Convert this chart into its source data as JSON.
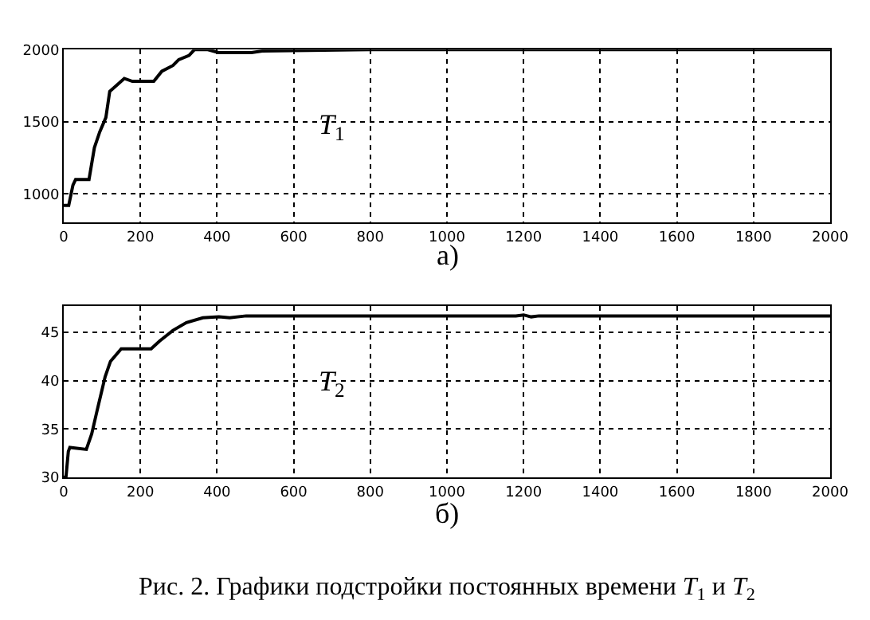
{
  "chart_data": [
    {
      "type": "line",
      "xlabel": "а)",
      "xlim": [
        0,
        2000
      ],
      "xticks": [
        0,
        200,
        400,
        600,
        800,
        1000,
        1200,
        1400,
        1600,
        1800,
        2000
      ],
      "ylim": [
        800,
        2000
      ],
      "yticks": [
        1000,
        1500,
        2000
      ],
      "grid": true,
      "legend": false,
      "marker": "none",
      "line_style": "solid",
      "series": [
        {
          "name": "T$_{1}$",
          "color": "#000000",
          "x": [
            0,
            13,
            24,
            31,
            66,
            80,
            94,
            110,
            120,
            137,
            158,
            179,
            235,
            256,
            285,
            300,
            327,
            341,
            376,
            404,
            490,
            518,
            800,
            1200,
            1620,
            2000
          ],
          "values": [
            920,
            920,
            1060,
            1100,
            1100,
            1320,
            1430,
            1530,
            1710,
            1750,
            1800,
            1780,
            1780,
            1850,
            1890,
            1930,
            1960,
            2000,
            2000,
            1980,
            1980,
            1990,
            2000,
            2000,
            2000,
            2000
          ]
        }
      ]
    },
    {
      "type": "line",
      "xlabel": "б)",
      "xlim": [
        0,
        2000
      ],
      "xticks": [
        0,
        200,
        400,
        600,
        800,
        1000,
        1200,
        1400,
        1600,
        1800,
        2000
      ],
      "ylim": [
        30,
        47.7
      ],
      "yticks": [
        30,
        35,
        40,
        45
      ],
      "grid": true,
      "legend": false,
      "marker": "none",
      "line_style": "solid",
      "series": [
        {
          "name": "T$_{2}$",
          "color": "#000000",
          "x": [
            0,
            6,
            12,
            16,
            59,
            73,
            87,
            108,
            122,
            150,
            228,
            250,
            285,
            320,
            363,
            405,
            433,
            476,
            1180,
            1200,
            1220,
            1240,
            2000
          ],
          "values": [
            30,
            30.1,
            32.7,
            33.1,
            32.9,
            34.5,
            36.9,
            40.4,
            42,
            43.3,
            43.3,
            44.1,
            45.2,
            46,
            46.5,
            46.6,
            46.5,
            46.7,
            46.7,
            46.8,
            46.6,
            46.7,
            46.7
          ]
        }
      ],
      "annotations": [
        "Рис. 2. Графики подстройки постоянных времени T$_{1}$ и T$_{2}$"
      ]
    }
  ]
}
